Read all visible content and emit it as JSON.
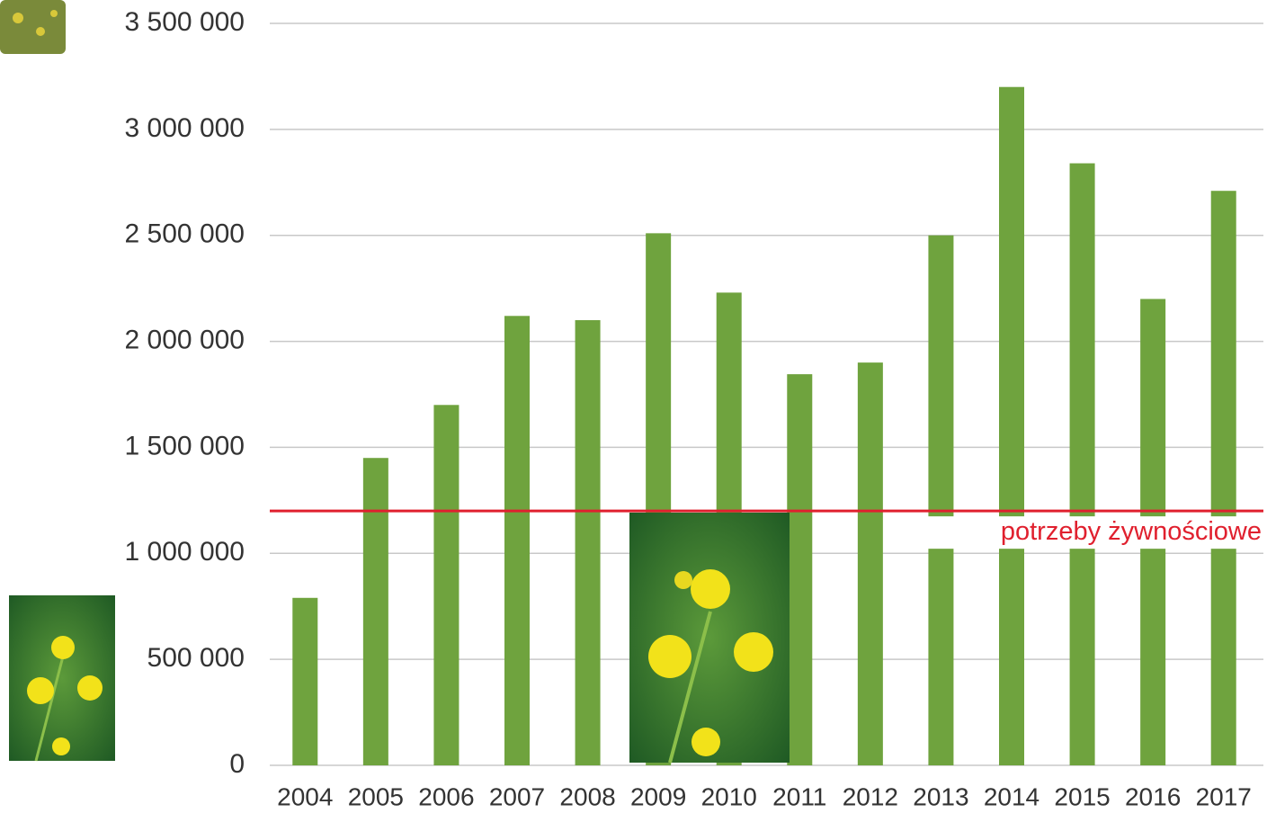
{
  "chart_data": {
    "type": "bar",
    "categories": [
      "2004",
      "2005",
      "2006",
      "2007",
      "2008",
      "2009",
      "2010",
      "2011",
      "2012",
      "2013",
      "2014",
      "2015",
      "2016",
      "2017"
    ],
    "values": [
      790000,
      1450000,
      1700000,
      2120000,
      2100000,
      2510000,
      2230000,
      1845000,
      1900000,
      2500000,
      3200000,
      2840000,
      2200000,
      2710000
    ],
    "color": "#6fa33e",
    "ylim": [
      0,
      3500000
    ],
    "yticks": [
      0,
      {
        "value": 500000,
        "label": "500 000"
      },
      {
        "value": 1000000,
        "label": "1 000 000"
      },
      {
        "value": 1500000,
        "label": "1 500 000"
      },
      {
        "value": 2000000,
        "label": "2 000 000"
      },
      {
        "value": 2500000,
        "label": "2 500 000"
      },
      {
        "value": 3000000,
        "label": "3 000 000"
      },
      {
        "value": 3500000,
        "label": "3 500 000"
      }
    ],
    "grid": true,
    "reference_line": {
      "value": 1200000,
      "label": "potrzeby żywnościowe",
      "color": "#e0202e"
    }
  }
}
